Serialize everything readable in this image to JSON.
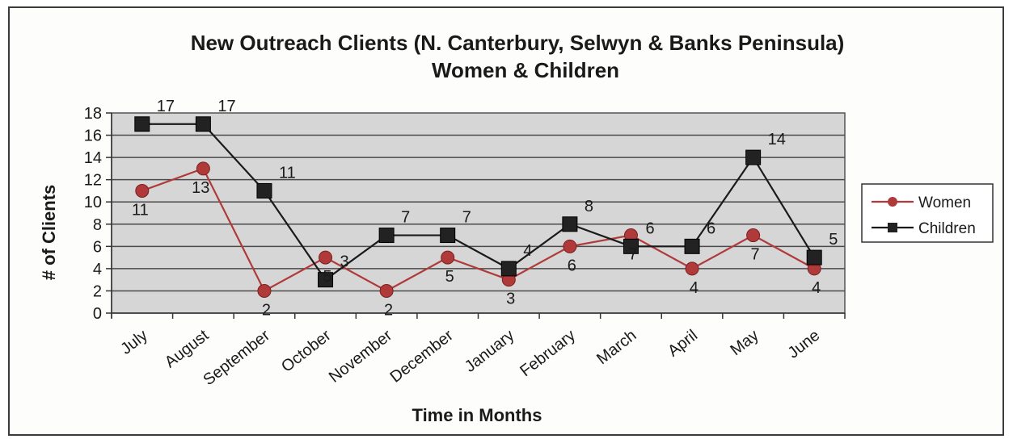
{
  "chart_data": {
    "type": "line",
    "title": "New Outreach Clients (N. Canterbury, Selwyn & Banks Peninsula)",
    "subtitle": "Women & Children",
    "xlabel": "Time in Months",
    "ylabel": "# of Clients",
    "ylim": [
      0,
      18
    ],
    "yticks": [
      0,
      2,
      4,
      6,
      8,
      10,
      12,
      14,
      16,
      18
    ],
    "grid": true,
    "legend_position": "right",
    "categories": [
      "July",
      "August",
      "September",
      "October",
      "November",
      "December",
      "January",
      "February",
      "March",
      "April",
      "May",
      "June"
    ],
    "series": [
      {
        "name": "Women",
        "values": [
          11,
          13,
          2,
          5,
          2,
          5,
          3,
          6,
          7,
          4,
          7,
          4
        ],
        "color": "#b03a3a",
        "marker": "circle"
      },
      {
        "name": "Children",
        "values": [
          17,
          17,
          11,
          3,
          7,
          7,
          4,
          8,
          6,
          6,
          14,
          5
        ],
        "color": "#1a1a1a",
        "marker": "square"
      }
    ]
  }
}
